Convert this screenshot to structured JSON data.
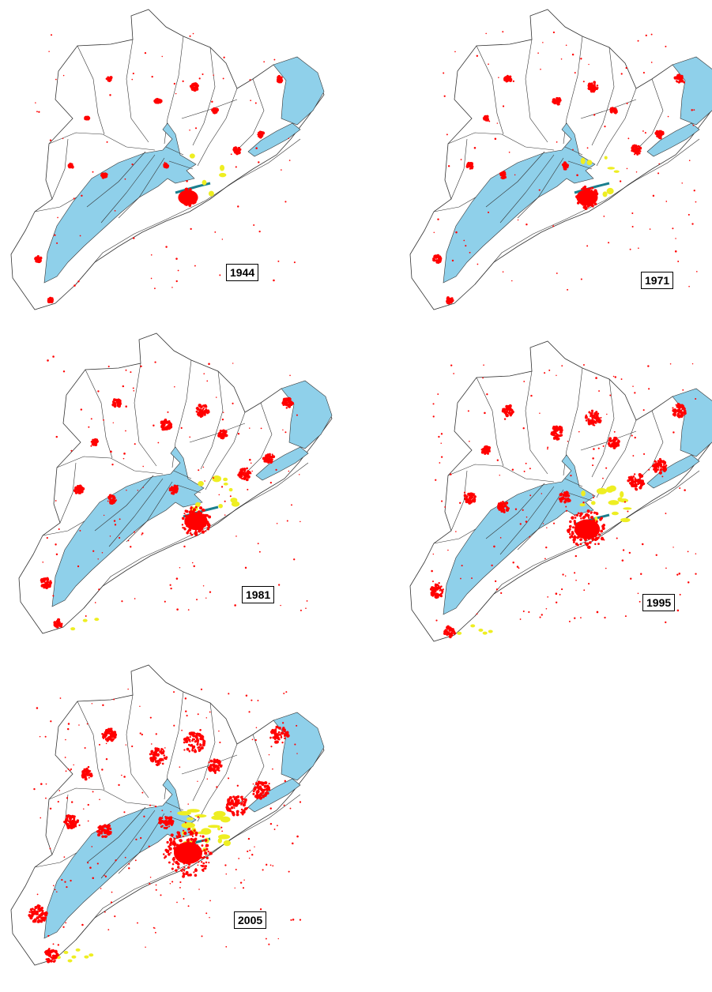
{
  "panels": [
    {
      "year": "1944",
      "urban_level": 0.1,
      "industrial_level": 0.05
    },
    {
      "year": "1971",
      "urban_level": 0.25,
      "industrial_level": 0.15
    },
    {
      "year": "1981",
      "urban_level": 0.45,
      "industrial_level": 0.35
    },
    {
      "year": "1995",
      "urban_level": 0.7,
      "industrial_level": 0.6
    },
    {
      "year": "2005",
      "urban_level": 1.0,
      "industrial_level": 0.85
    }
  ],
  "colors": {
    "lagoon": "#8fd0ea",
    "urban": "#ff0000",
    "industrial": "#eeee22",
    "infrastructure": "#1a7f8e",
    "boundary": "#333333"
  }
}
